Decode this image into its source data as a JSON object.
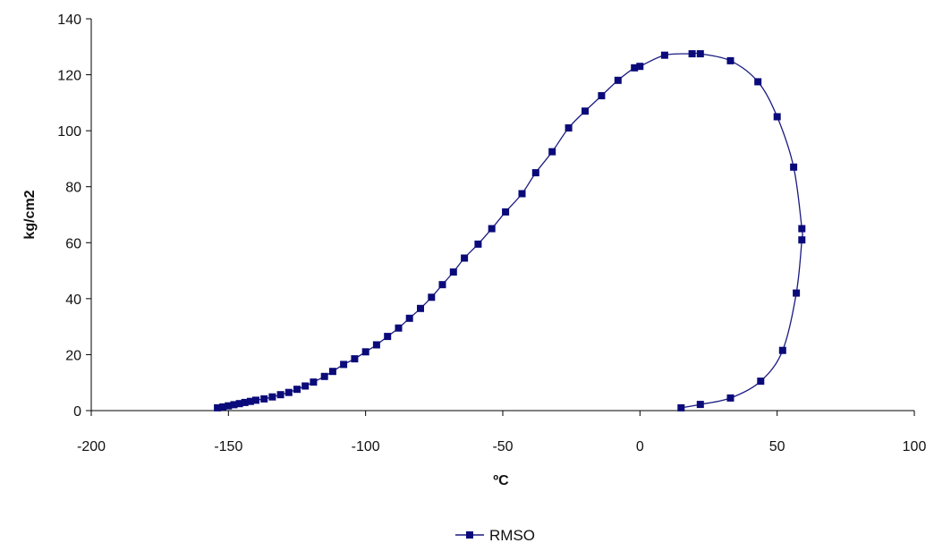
{
  "chart_data": {
    "type": "scatter",
    "title": "",
    "xlabel": "ºC",
    "ylabel": "kg/cm2",
    "xlim": [
      -200,
      100
    ],
    "ylim": [
      0,
      140
    ],
    "x_ticks": [
      -200,
      -150,
      -100,
      -50,
      0,
      50,
      100
    ],
    "y_ticks": [
      0,
      20,
      40,
      60,
      80,
      100,
      120,
      140
    ],
    "grid": false,
    "legend_position": "bottom-center",
    "line_color": "#1a1a80",
    "marker_color": "#0a0a7a",
    "series": [
      {
        "name": "RMSO",
        "marker": "square",
        "smooth": true,
        "points": [
          [
            -154,
            1
          ],
          [
            -152,
            1.3
          ],
          [
            -150,
            1.7
          ],
          [
            -148,
            2.1
          ],
          [
            -146,
            2.5
          ],
          [
            -144,
            2.9
          ],
          [
            -142,
            3.3
          ],
          [
            -140,
            3.7
          ],
          [
            -137,
            4.2
          ],
          [
            -134,
            4.9
          ],
          [
            -131,
            5.7
          ],
          [
            -128,
            6.5
          ],
          [
            -125,
            7.6
          ],
          [
            -122,
            8.8
          ],
          [
            -119,
            10.2
          ],
          [
            -115,
            12.2
          ],
          [
            -112,
            14
          ],
          [
            -108,
            16.5
          ],
          [
            -104,
            18.5
          ],
          [
            -100,
            21
          ],
          [
            -96,
            23.5
          ],
          [
            -92,
            26.5
          ],
          [
            -88,
            29.5
          ],
          [
            -84,
            33
          ],
          [
            -80,
            36.5
          ],
          [
            -76,
            40.5
          ],
          [
            -72,
            45
          ],
          [
            -68,
            49.5
          ],
          [
            -64,
            54.5
          ],
          [
            -59,
            59.5
          ],
          [
            -54,
            65
          ],
          [
            -49,
            71
          ],
          [
            -43,
            77.5
          ],
          [
            -38,
            85
          ],
          [
            -32,
            92.5
          ],
          [
            -26,
            101
          ],
          [
            -20,
            107
          ],
          [
            -14,
            112.5
          ],
          [
            -8,
            118
          ],
          [
            -2,
            122.5
          ],
          [
            0,
            123
          ],
          [
            9,
            127
          ],
          [
            19,
            127.5
          ],
          [
            22,
            127.5
          ],
          [
            33,
            125
          ],
          [
            43,
            117.5
          ],
          [
            50,
            105
          ],
          [
            56,
            87
          ],
          [
            59,
            65
          ],
          [
            59,
            61
          ],
          [
            57,
            42
          ],
          [
            52,
            21.5
          ],
          [
            44,
            10.5
          ],
          [
            33,
            4.5
          ],
          [
            22,
            2.2
          ],
          [
            15,
            1
          ]
        ]
      }
    ]
  }
}
